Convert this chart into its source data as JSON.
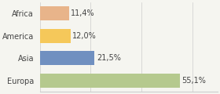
{
  "categories": [
    "Africa",
    "America",
    "Asia",
    "Europa"
  ],
  "values": [
    11.4,
    12.0,
    21.5,
    55.1
  ],
  "labels": [
    "11,4%",
    "12,0%",
    "21,5%",
    "55,1%"
  ],
  "bar_colors": [
    "#e8b48a",
    "#f5c85a",
    "#7090c0",
    "#b5c98e"
  ],
  "background_color": "#f5f5f0",
  "xlim": [
    0,
    70
  ],
  "label_fontsize": 7.0,
  "cat_fontsize": 7.0
}
